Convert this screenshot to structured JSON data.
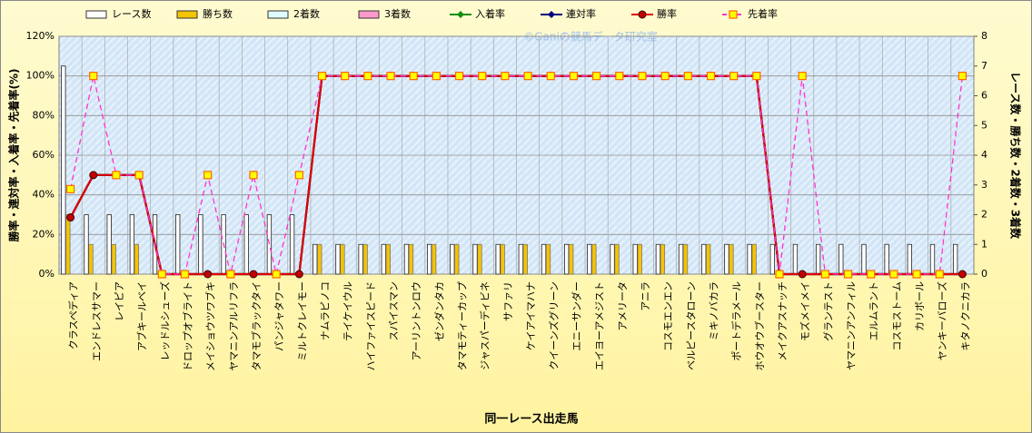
{
  "chart_data": {
    "type": "combo",
    "title": "同一レース出走馬",
    "watermark": "©Ganiの競馬データ研究室",
    "ylabel": "勝率・連対率・入着率・先着率(%)",
    "y2label": "レース数・勝ち数・2着数・3着数",
    "categories": [
      "クラスペディア",
      "エンドレスサマー",
      "レイピア",
      "アブキールベイ",
      "レッドルシューズ",
      "ドロップオブライト",
      "メイショウツワブキ",
      "ヤマニンアルリフラ",
      "タマモブラックタイ",
      "パンジャタワー",
      "ミルトクレイモー",
      "ナムラピノコ",
      "テイケイウル",
      "ハイファイスピード",
      "スパイスマン",
      "アーリントンロウ",
      "ゼンダンタカ",
      "タマモティーカップ",
      "ジャスパーディビネ",
      "サファリ",
      "ケイアイマハナ",
      "クイーンズグリーン",
      "エニーサンダー",
      "エイヨーアメジスト",
      "アメリータ",
      "アニラ",
      "コスモエンエン",
      "ベルピースタローン",
      "ミキノバカラ",
      "ポートデラメール",
      "ホウオウブースター",
      "メイクアスナッチ",
      "モズメイメイ",
      "グランテスト",
      "ヤマニンアンフィル",
      "エルムラント",
      "コスモストーム",
      "カリボール",
      "ヤンキーバローズ",
      "キタノクニカラ"
    ],
    "series": [
      {
        "name": "レース数",
        "kind": "bar",
        "axis": "y2",
        "color": "#ffffff",
        "values": [
          7,
          2,
          2,
          2,
          2,
          2,
          2,
          2,
          2,
          2,
          2,
          1,
          1,
          1,
          1,
          1,
          1,
          1,
          1,
          1,
          1,
          1,
          1,
          1,
          1,
          1,
          1,
          1,
          1,
          1,
          1,
          1,
          1,
          1,
          1,
          1,
          1,
          1,
          1,
          1
        ]
      },
      {
        "name": "勝ち数",
        "kind": "bar",
        "axis": "y2",
        "color": "#f5c400",
        "values": [
          2,
          1,
          1,
          1,
          0,
          0,
          0,
          0,
          0,
          0,
          0,
          1,
          1,
          1,
          1,
          1,
          1,
          1,
          1,
          1,
          1,
          1,
          1,
          1,
          1,
          1,
          1,
          1,
          1,
          1,
          1,
          0,
          0,
          0,
          0,
          0,
          0,
          0,
          0,
          0
        ]
      },
      {
        "name": "2着数",
        "kind": "bar",
        "axis": "y2",
        "color": "#dffcff",
        "values": [
          0,
          0,
          0,
          0,
          0,
          0,
          0,
          0,
          0,
          0,
          0,
          0,
          0,
          0,
          0,
          0,
          0,
          0,
          0,
          0,
          0,
          0,
          0,
          0,
          0,
          0,
          0,
          0,
          0,
          0,
          0,
          0,
          0,
          0,
          0,
          0,
          0,
          0,
          0,
          0
        ]
      },
      {
        "name": "3着数",
        "kind": "bar",
        "axis": "y2",
        "color": "#ff99cc",
        "values": [
          0,
          0,
          0,
          0,
          0,
          0,
          0,
          0,
          0,
          0,
          0,
          0,
          0,
          0,
          0,
          0,
          0,
          0,
          0,
          0,
          0,
          0,
          0,
          0,
          0,
          0,
          0,
          0,
          0,
          0,
          0,
          0,
          0,
          0,
          0,
          0,
          0,
          0,
          0,
          0
        ]
      },
      {
        "name": "入着率",
        "kind": "line",
        "color": "#109010",
        "marker": "diamond",
        "values": [
          28.6,
          50,
          50,
          50,
          0,
          0,
          0,
          0,
          0,
          0,
          0,
          100,
          100,
          100,
          100,
          100,
          100,
          100,
          100,
          100,
          100,
          100,
          100,
          100,
          100,
          100,
          100,
          100,
          100,
          100,
          100,
          0,
          0,
          0,
          0,
          0,
          0,
          0,
          0,
          0
        ]
      },
      {
        "name": "連対率",
        "kind": "line",
        "color": "#000080",
        "marker": "diamond",
        "values": [
          28.6,
          50,
          50,
          50,
          0,
          0,
          0,
          0,
          0,
          0,
          0,
          100,
          100,
          100,
          100,
          100,
          100,
          100,
          100,
          100,
          100,
          100,
          100,
          100,
          100,
          100,
          100,
          100,
          100,
          100,
          100,
          0,
          0,
          0,
          0,
          0,
          0,
          0,
          0,
          0
        ]
      },
      {
        "name": "勝率",
        "kind": "line",
        "color": "#e00000",
        "marker": "circle",
        "values": [
          28.6,
          50,
          50,
          50,
          0,
          0,
          0,
          0,
          0,
          0,
          0,
          100,
          100,
          100,
          100,
          100,
          100,
          100,
          100,
          100,
          100,
          100,
          100,
          100,
          100,
          100,
          100,
          100,
          100,
          100,
          100,
          0,
          0,
          0,
          0,
          0,
          0,
          0,
          0,
          0
        ]
      },
      {
        "name": "先着率",
        "kind": "line",
        "dashed": true,
        "color": "#ff33cc",
        "marker": "square",
        "values": [
          42.9,
          100,
          50,
          50,
          0,
          0,
          50,
          0,
          50,
          0,
          50,
          100,
          100,
          100,
          100,
          100,
          100,
          100,
          100,
          100,
          100,
          100,
          100,
          100,
          100,
          100,
          100,
          100,
          100,
          100,
          100,
          0,
          100,
          0,
          0,
          0,
          0,
          0,
          0,
          100
        ]
      }
    ],
    "ylim": [
      0,
      120
    ],
    "yticks": [
      {
        "value": 0,
        "label": "0%"
      },
      {
        "value": 20,
        "label": "20%"
      },
      {
        "value": 40,
        "label": "40%"
      },
      {
        "value": 60,
        "label": "60%"
      },
      {
        "value": 80,
        "label": "80%"
      },
      {
        "value": 100,
        "label": "100%"
      },
      {
        "value": 120,
        "label": "120%"
      }
    ],
    "y2lim": [
      0,
      8
    ],
    "y2ticks": [
      0,
      1,
      2,
      3,
      4,
      5,
      6,
      7,
      8
    ],
    "grid": true
  }
}
